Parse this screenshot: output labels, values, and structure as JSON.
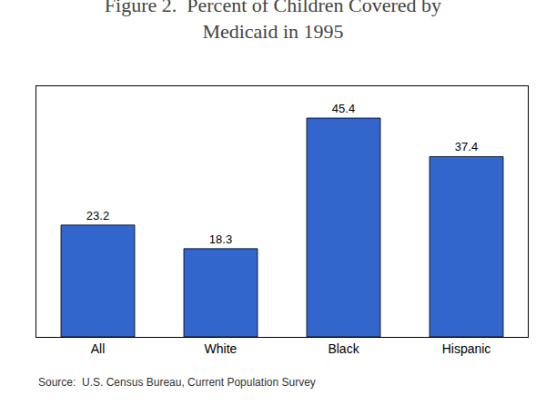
{
  "chart_data": {
    "type": "bar",
    "title": "Figure 2.  Percent of Children Covered by\nMedicaid in 1995",
    "categories": [
      "All",
      "White",
      "Black",
      "Hispanic"
    ],
    "values": [
      23.2,
      18.3,
      45.4,
      37.4
    ],
    "color": "#3366cc",
    "ylim": [
      0,
      52
    ],
    "yticks": [],
    "grid": false,
    "data_labels": true,
    "tick_labels": "x",
    "annotations": [
      "Source:  U.S. Census Bureau, Current Population Survey"
    ]
  }
}
